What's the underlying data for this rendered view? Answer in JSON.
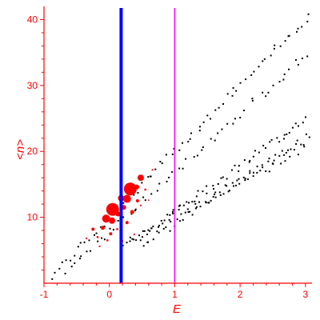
{
  "chart_data": {
    "type": "scatter",
    "title": "",
    "xlabel": "E",
    "ylabel": "<n>",
    "xlim": [
      -1,
      3.1
    ],
    "ylim": [
      0,
      42
    ],
    "xticks": [
      -1,
      0,
      1,
      2,
      3
    ],
    "yticks": [
      10,
      20,
      30,
      40
    ],
    "xtick_labels": [
      "-1",
      "0",
      "1",
      "2",
      "3"
    ],
    "ytick_labels": [
      "10",
      "20",
      "30",
      "40"
    ],
    "axis_color": "#ff0000",
    "grid": false,
    "vlines": [
      {
        "x": 0.18,
        "color": "#0000ff",
        "style": "thick"
      },
      {
        "x": 1.0,
        "color": "#ff00ff",
        "style": "thin"
      }
    ],
    "bands": [
      {
        "color": "#000000",
        "x_start": -0.9,
        "y_start": 0.9,
        "x_end": 3.1,
        "y_end": 41.0,
        "count": 70
      },
      {
        "color": "#000000",
        "x_start": -0.7,
        "y_start": 1.6,
        "x_end": 3.1,
        "y_end": 35.5,
        "count": 55
      },
      {
        "color": "#000000",
        "x_start": 0.2,
        "y_start": 5.2,
        "x_end": 3.1,
        "y_end": 25.6,
        "count": 60
      },
      {
        "color": "#000000",
        "x_start": 0.5,
        "y_start": 6.0,
        "x_end": 3.1,
        "y_end": 22.5,
        "count": 55
      },
      {
        "color": "#000000",
        "x_start": 0.3,
        "y_start": 6.8,
        "x_end": 3.0,
        "y_end": 20.5,
        "count": 45
      }
    ],
    "highlight_series": {
      "color": "#ff0000",
      "points": [
        {
          "x": 0.05,
          "y": 11.2,
          "size": 8
        },
        {
          "x": 0.32,
          "y": 14.3,
          "size": 8
        },
        {
          "x": 0.27,
          "y": 12.8,
          "size": 5
        },
        {
          "x": -0.05,
          "y": 9.8,
          "size": 5
        },
        {
          "x": 0.48,
          "y": 16.0,
          "size": 4
        },
        {
          "x": 0.04,
          "y": 9.5,
          "size": 4
        },
        {
          "x": 0.18,
          "y": 12.9,
          "size": 4
        },
        {
          "x": 0.42,
          "y": 14.6,
          "size": 3
        },
        {
          "x": 0.22,
          "y": 11.5,
          "size": 3
        },
        {
          "x": 0.13,
          "y": 10.5,
          "size": 3
        },
        {
          "x": -0.1,
          "y": 8.4,
          "size": 2.5
        },
        {
          "x": 0.35,
          "y": 10.8,
          "size": 2.5
        },
        {
          "x": -0.25,
          "y": 8.2,
          "size": 2
        },
        {
          "x": 0.43,
          "y": 12.5,
          "size": 2
        },
        {
          "x": 0.02,
          "y": 7.5,
          "size": 2
        },
        {
          "x": 0.27,
          "y": 9.2,
          "size": 2
        },
        {
          "x": -0.03,
          "y": 6.5,
          "size": 1.5
        },
        {
          "x": -0.18,
          "y": 7.0,
          "size": 1.5
        },
        {
          "x": 0.12,
          "y": 8.2,
          "size": 1.5
        },
        {
          "x": 0.55,
          "y": 14.2,
          "size": 1.5
        },
        {
          "x": -0.35,
          "y": 6.8,
          "size": 1.2
        },
        {
          "x": 0.2,
          "y": 6.4,
          "size": 1.2
        },
        {
          "x": 0.38,
          "y": 7.4,
          "size": 1.2
        },
        {
          "x": 0.48,
          "y": 11.8,
          "size": 1.2
        },
        {
          "x": 0.66,
          "y": 17.2,
          "size": 1.2
        },
        {
          "x": -0.15,
          "y": 5.6,
          "size": 1.2
        },
        {
          "x": 0.6,
          "y": 12.6,
          "size": 1
        }
      ]
    }
  }
}
